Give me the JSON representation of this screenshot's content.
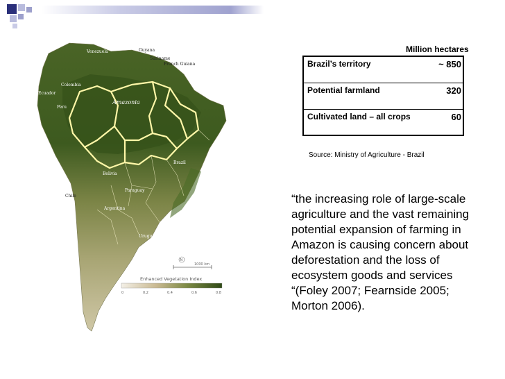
{
  "table": {
    "units": "Million hectares",
    "rows": [
      {
        "label": "Brazil’s territory",
        "value": "~ 850"
      },
      {
        "label": "Potential farmland",
        "value": "320"
      },
      {
        "label": "Cultivated land – all crops",
        "value": "60"
      }
    ],
    "source": "Source: Ministry of Agriculture - Brazil"
  },
  "quote": "“the increasing role of large-scale agriculture and the vast remaining potential expansion of farming in Amazon is causing concern about deforestation and the loss of ecosystem goods and services “(Foley 2007; Fearnside 2005; Morton 2006).",
  "map": {
    "region_label": "Amazonia",
    "country_labels": {
      "venezuela": "Venezuela",
      "guyana": "Guyana",
      "suriname": "Suriname",
      "french_guiana": "French Guiana",
      "colombia": "Colombia",
      "ecuador": "Ecuador",
      "peru": "Peru",
      "brazil": "Brazil",
      "bolivia": "Bolivia",
      "paraguay": "Paraguay",
      "chile": "Chile",
      "argentina": "Argentina",
      "uruguay": "Uruguay"
    },
    "scale_label": "1000 km",
    "legend_title": "Enhanced Vegetation Index",
    "legend_ticks": [
      "0",
      "0.2",
      "0.4",
      "0.6",
      "0.8"
    ],
    "colors": {
      "forest": "#3d5a1f",
      "forest_dark": "#2f4a17",
      "savanna": "#8c8d55",
      "dry": "#c9bd98",
      "boundary": "#fff7a8"
    }
  },
  "theme": {
    "square_dark": "#2a2f7a",
    "square_light": "#9da0cc"
  }
}
